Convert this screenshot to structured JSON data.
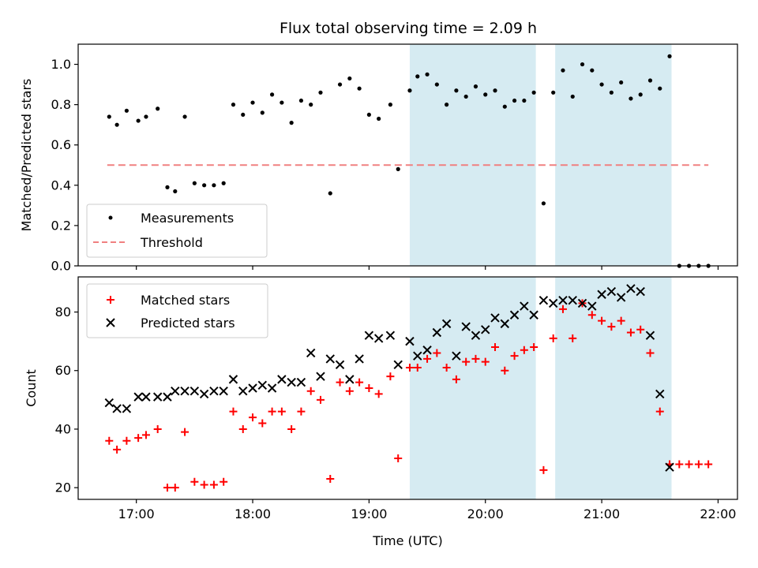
{
  "chart_data": [
    {
      "type": "scatter",
      "title": "Flux total observing time = 2.09 h",
      "xlabel": "",
      "ylabel": "Matched/Predicted stars",
      "xlim": [
        "16:30",
        "22:10"
      ],
      "ylim": [
        0.0,
        1.1
      ],
      "yticks": [
        "0.0",
        "0.2",
        "0.4",
        "0.6",
        "0.8",
        "1.0"
      ],
      "yticks_values": [
        0.0,
        0.2,
        0.4,
        0.6,
        0.8,
        1.0
      ],
      "xtick_values": [
        "17:00",
        "18:00",
        "19:00",
        "20:00",
        "21:00",
        "22:00"
      ],
      "shaded_spans": [
        [
          "19:21",
          "20:26"
        ],
        [
          "20:36",
          "21:36"
        ]
      ],
      "legend": {
        "placement": "lower-left",
        "entries": [
          "Measurements",
          "Threshold"
        ]
      },
      "series": [
        {
          "name": "Measurements",
          "marker": "dot",
          "color": "#000000",
          "x": [
            "16:46",
            "16:50",
            "16:55",
            "17:01",
            "17:05",
            "17:11",
            "17:16",
            "17:20",
            "17:25",
            "17:30",
            "17:35",
            "17:40",
            "17:45",
            "17:50",
            "17:55",
            "18:00",
            "18:05",
            "18:10",
            "18:15",
            "18:20",
            "18:25",
            "18:30",
            "18:35",
            "18:40",
            "18:45",
            "18:50",
            "18:55",
            "19:00",
            "19:05",
            "19:11",
            "19:15",
            "19:21",
            "19:25",
            "19:30",
            "19:35",
            "19:40",
            "19:45",
            "19:50",
            "19:55",
            "20:00",
            "20:05",
            "20:10",
            "20:15",
            "20:20",
            "20:25",
            "20:30",
            "20:35",
            "20:40",
            "20:45",
            "20:50",
            "20:55",
            "21:00",
            "21:05",
            "21:10",
            "21:15",
            "21:20",
            "21:25",
            "21:30",
            "21:35",
            "21:40",
            "21:45",
            "21:50",
            "21:55"
          ],
          "y": [
            0.74,
            0.7,
            0.77,
            0.72,
            0.74,
            0.78,
            0.39,
            0.37,
            0.74,
            0.41,
            0.4,
            0.4,
            0.41,
            0.8,
            0.75,
            0.81,
            0.76,
            0.85,
            0.81,
            0.71,
            0.82,
            0.8,
            0.86,
            0.36,
            0.9,
            0.93,
            0.88,
            0.75,
            0.73,
            0.8,
            0.48,
            0.87,
            0.94,
            0.95,
            0.9,
            0.8,
            0.87,
            0.84,
            0.89,
            0.85,
            0.87,
            0.79,
            0.82,
            0.82,
            0.86,
            0.31,
            0.86,
            0.97,
            0.84,
            1.0,
            0.97,
            0.9,
            0.86,
            0.91,
            0.83,
            0.85,
            0.92,
            0.88,
            1.04,
            0.0,
            0.0,
            0.0,
            0.0
          ]
        },
        {
          "name": "Threshold",
          "line_style": "dashed",
          "color": "#f08080",
          "x": [
            "16:45",
            "21:55"
          ],
          "y": [
            0.5,
            0.5
          ]
        }
      ]
    },
    {
      "type": "scatter",
      "title": "",
      "xlabel": "Time (UTC)",
      "ylabel": "Count",
      "xlim": [
        "16:30",
        "22:10"
      ],
      "ylim": [
        16,
        92
      ],
      "yticks": [
        "20",
        "40",
        "60",
        "80"
      ],
      "yticks_values": [
        20,
        40,
        60,
        80
      ],
      "xticks": [
        "17:00",
        "18:00",
        "19:00",
        "20:00",
        "21:00",
        "22:00"
      ],
      "xtick_values": [
        "17:00",
        "18:00",
        "19:00",
        "20:00",
        "21:00",
        "22:00"
      ],
      "shaded_spans": [
        [
          "19:21",
          "20:26"
        ],
        [
          "20:36",
          "21:36"
        ]
      ],
      "legend": {
        "placement": "top-left",
        "entries": [
          "Matched stars",
          "Predicted stars"
        ]
      },
      "series": [
        {
          "name": "Matched stars",
          "marker": "plus",
          "color": "#ff0000",
          "x": [
            "16:46",
            "16:50",
            "16:55",
            "17:01",
            "17:05",
            "17:11",
            "17:16",
            "17:20",
            "17:25",
            "17:30",
            "17:35",
            "17:40",
            "17:45",
            "17:50",
            "17:55",
            "18:00",
            "18:05",
            "18:10",
            "18:15",
            "18:20",
            "18:25",
            "18:30",
            "18:35",
            "18:40",
            "18:45",
            "18:50",
            "18:55",
            "19:00",
            "19:05",
            "19:11",
            "19:15",
            "19:21",
            "19:25",
            "19:30",
            "19:35",
            "19:40",
            "19:45",
            "19:50",
            "19:55",
            "20:00",
            "20:05",
            "20:10",
            "20:15",
            "20:20",
            "20:25",
            "20:30",
            "20:35",
            "20:40",
            "20:45",
            "20:50",
            "20:55",
            "21:00",
            "21:05",
            "21:10",
            "21:15",
            "21:20",
            "21:25",
            "21:30",
            "21:35",
            "21:40",
            "21:45",
            "21:50",
            "21:55"
          ],
          "y": [
            36,
            33,
            36,
            37,
            38,
            40,
            20,
            20,
            39,
            22,
            21,
            21,
            22,
            46,
            40,
            44,
            42,
            46,
            46,
            40,
            46,
            53,
            50,
            23,
            56,
            53,
            56,
            54,
            52,
            58,
            30,
            61,
            61,
            64,
            66,
            61,
            57,
            63,
            64,
            63,
            68,
            60,
            65,
            67,
            68,
            26,
            71,
            81,
            71,
            83,
            79,
            77,
            75,
            77,
            73,
            74,
            66,
            46,
            28,
            28,
            28,
            28,
            28
          ]
        },
        {
          "name": "Predicted stars",
          "marker": "x",
          "color": "#000000",
          "x": [
            "16:46",
            "16:50",
            "16:55",
            "17:01",
            "17:05",
            "17:11",
            "17:16",
            "17:20",
            "17:25",
            "17:30",
            "17:35",
            "17:40",
            "17:45",
            "17:50",
            "17:55",
            "18:00",
            "18:05",
            "18:10",
            "18:15",
            "18:20",
            "18:25",
            "18:30",
            "18:35",
            "18:40",
            "18:45",
            "18:50",
            "18:55",
            "19:00",
            "19:05",
            "19:11",
            "19:15",
            "19:21",
            "19:25",
            "19:30",
            "19:35",
            "19:40",
            "19:45",
            "19:50",
            "19:55",
            "20:00",
            "20:05",
            "20:10",
            "20:15",
            "20:20",
            "20:25",
            "20:30",
            "20:35",
            "20:40",
            "20:45",
            "20:50",
            "20:55",
            "21:00",
            "21:05",
            "21:10",
            "21:15",
            "21:20",
            "21:25",
            "21:30",
            "21:35"
          ],
          "y": [
            49,
            47,
            47,
            51,
            51,
            51,
            51,
            53,
            53,
            53,
            52,
            53,
            53,
            57,
            53,
            54,
            55,
            54,
            57,
            56,
            56,
            66,
            58,
            64,
            62,
            57,
            64,
            72,
            71,
            72,
            62,
            70,
            65,
            67,
            73,
            76,
            65,
            75,
            72,
            74,
            78,
            76,
            79,
            82,
            79,
            84,
            83,
            84,
            84,
            83,
            82,
            86,
            87,
            85,
            88,
            87,
            72,
            52,
            27
          ]
        }
      ]
    }
  ],
  "colors": {
    "shade": "#add8e6",
    "matched": "#ff0000",
    "predicted": "#000000",
    "threshold": "#f08080"
  }
}
